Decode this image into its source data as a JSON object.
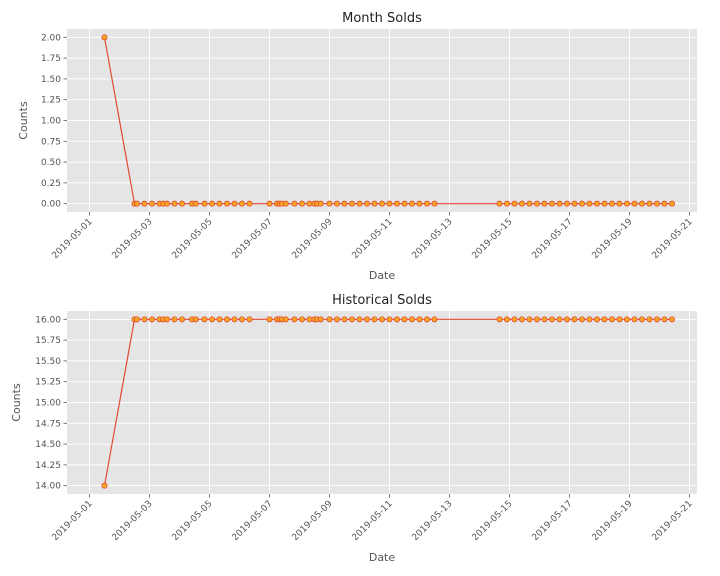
{
  "style": {
    "panel_bg": "#e5e5e5",
    "grid_color": "#ffffff",
    "line_color": "#e24a33",
    "marker_fill": "#f5a623",
    "marker_edge": "#e24a33"
  },
  "chart_data": [
    {
      "type": "line",
      "title": "Month Solds",
      "xlabel": "Date",
      "ylabel": "Counts",
      "grid": true,
      "x_ticks": [
        "2019-05-01",
        "2019-05-03",
        "2019-05-05",
        "2019-05-07",
        "2019-05-09",
        "2019-05-11",
        "2019-05-13",
        "2019-05-15",
        "2019-05-17",
        "2019-05-19",
        "2019-05-21"
      ],
      "xlim": [
        "2019-04-30 06:00",
        "2019-05-21 06:00"
      ],
      "y_ticks": [
        "0.00",
        "0.25",
        "0.50",
        "0.75",
        "1.00",
        "1.25",
        "1.50",
        "1.75",
        "2.00"
      ],
      "ylim": [
        -0.1,
        2.1
      ],
      "x": [
        "2019-05-01 12:00",
        "2019-05-02 12:00",
        "2019-05-02 14:00",
        "2019-05-02 20:00",
        "2019-05-03 02:00",
        "2019-05-03 08:00",
        "2019-05-03 11:00",
        "2019-05-03 14:00",
        "2019-05-03 20:00",
        "2019-05-04 02:00",
        "2019-05-04 10:00",
        "2019-05-04 13:00",
        "2019-05-04 20:00",
        "2019-05-05 02:00",
        "2019-05-05 08:00",
        "2019-05-05 14:00",
        "2019-05-05 20:00",
        "2019-05-06 02:00",
        "2019-05-06 08:00",
        "2019-05-07 00:00",
        "2019-05-07 06:00",
        "2019-05-07 08:00",
        "2019-05-07 10:00",
        "2019-05-07 13:00",
        "2019-05-07 20:00",
        "2019-05-08 02:00",
        "2019-05-08 08:00",
        "2019-05-08 12:00",
        "2019-05-08 14:00",
        "2019-05-08 17:00",
        "2019-05-09 00:00",
        "2019-05-09 06:00",
        "2019-05-09 12:00",
        "2019-05-09 18:00",
        "2019-05-10 00:00",
        "2019-05-10 06:00",
        "2019-05-10 12:00",
        "2019-05-10 18:00",
        "2019-05-11 00:00",
        "2019-05-11 06:00",
        "2019-05-11 12:00",
        "2019-05-11 18:00",
        "2019-05-12 00:00",
        "2019-05-12 06:00",
        "2019-05-12 12:00",
        "2019-05-14 16:00",
        "2019-05-14 22:00",
        "2019-05-15 04:00",
        "2019-05-15 10:00",
        "2019-05-15 16:00",
        "2019-05-15 22:00",
        "2019-05-16 04:00",
        "2019-05-16 10:00",
        "2019-05-16 16:00",
        "2019-05-16 22:00",
        "2019-05-17 04:00",
        "2019-05-17 10:00",
        "2019-05-17 16:00",
        "2019-05-17 22:00",
        "2019-05-18 04:00",
        "2019-05-18 10:00",
        "2019-05-18 16:00",
        "2019-05-18 22:00",
        "2019-05-19 04:00",
        "2019-05-19 10:00",
        "2019-05-19 16:00",
        "2019-05-19 22:00",
        "2019-05-20 04:00",
        "2019-05-20 10:00"
      ],
      "y": [
        2,
        0,
        0,
        0,
        0,
        0,
        0,
        0,
        0,
        0,
        0,
        0,
        0,
        0,
        0,
        0,
        0,
        0,
        0,
        0,
        0,
        0,
        0,
        0,
        0,
        0,
        0,
        0,
        0,
        0,
        0,
        0,
        0,
        0,
        0,
        0,
        0,
        0,
        0,
        0,
        0,
        0,
        0,
        0,
        0,
        0,
        0,
        0,
        0,
        0,
        0,
        0,
        0,
        0,
        0,
        0,
        0,
        0,
        0,
        0,
        0,
        0,
        0,
        0,
        0,
        0,
        0,
        0,
        0
      ]
    },
    {
      "type": "line",
      "title": "Historical Solds",
      "xlabel": "Date",
      "ylabel": "Counts",
      "grid": true,
      "x_ticks": [
        "2019-05-01",
        "2019-05-03",
        "2019-05-05",
        "2019-05-07",
        "2019-05-09",
        "2019-05-11",
        "2019-05-13",
        "2019-05-15",
        "2019-05-17",
        "2019-05-19",
        "2019-05-21"
      ],
      "xlim": [
        "2019-04-30 06:00",
        "2019-05-21 06:00"
      ],
      "y_ticks": [
        "14.00",
        "14.25",
        "14.50",
        "14.75",
        "15.00",
        "15.25",
        "15.50",
        "15.75",
        "16.00"
      ],
      "ylim": [
        13.9,
        16.1
      ],
      "x": [
        "2019-05-01 12:00",
        "2019-05-02 12:00",
        "2019-05-02 14:00",
        "2019-05-02 20:00",
        "2019-05-03 02:00",
        "2019-05-03 08:00",
        "2019-05-03 11:00",
        "2019-05-03 14:00",
        "2019-05-03 20:00",
        "2019-05-04 02:00",
        "2019-05-04 10:00",
        "2019-05-04 13:00",
        "2019-05-04 20:00",
        "2019-05-05 02:00",
        "2019-05-05 08:00",
        "2019-05-05 14:00",
        "2019-05-05 20:00",
        "2019-05-06 02:00",
        "2019-05-06 08:00",
        "2019-05-07 00:00",
        "2019-05-07 06:00",
        "2019-05-07 08:00",
        "2019-05-07 10:00",
        "2019-05-07 13:00",
        "2019-05-07 20:00",
        "2019-05-08 02:00",
        "2019-05-08 08:00",
        "2019-05-08 12:00",
        "2019-05-08 14:00",
        "2019-05-08 17:00",
        "2019-05-09 00:00",
        "2019-05-09 06:00",
        "2019-05-09 12:00",
        "2019-05-09 18:00",
        "2019-05-10 00:00",
        "2019-05-10 06:00",
        "2019-05-10 12:00",
        "2019-05-10 18:00",
        "2019-05-11 00:00",
        "2019-05-11 06:00",
        "2019-05-11 12:00",
        "2019-05-11 18:00",
        "2019-05-12 00:00",
        "2019-05-12 06:00",
        "2019-05-12 12:00",
        "2019-05-14 16:00",
        "2019-05-14 22:00",
        "2019-05-15 04:00",
        "2019-05-15 10:00",
        "2019-05-15 16:00",
        "2019-05-15 22:00",
        "2019-05-16 04:00",
        "2019-05-16 10:00",
        "2019-05-16 16:00",
        "2019-05-16 22:00",
        "2019-05-17 04:00",
        "2019-05-17 10:00",
        "2019-05-17 16:00",
        "2019-05-17 22:00",
        "2019-05-18 04:00",
        "2019-05-18 10:00",
        "2019-05-18 16:00",
        "2019-05-18 22:00",
        "2019-05-19 04:00",
        "2019-05-19 10:00",
        "2019-05-19 16:00",
        "2019-05-19 22:00",
        "2019-05-20 04:00",
        "2019-05-20 10:00"
      ],
      "y": [
        14,
        16,
        16,
        16,
        16,
        16,
        16,
        16,
        16,
        16,
        16,
        16,
        16,
        16,
        16,
        16,
        16,
        16,
        16,
        16,
        16,
        16,
        16,
        16,
        16,
        16,
        16,
        16,
        16,
        16,
        16,
        16,
        16,
        16,
        16,
        16,
        16,
        16,
        16,
        16,
        16,
        16,
        16,
        16,
        16,
        16,
        16,
        16,
        16,
        16,
        16,
        16,
        16,
        16,
        16,
        16,
        16,
        16,
        16,
        16,
        16,
        16,
        16,
        16,
        16,
        16,
        16,
        16,
        16
      ]
    }
  ]
}
